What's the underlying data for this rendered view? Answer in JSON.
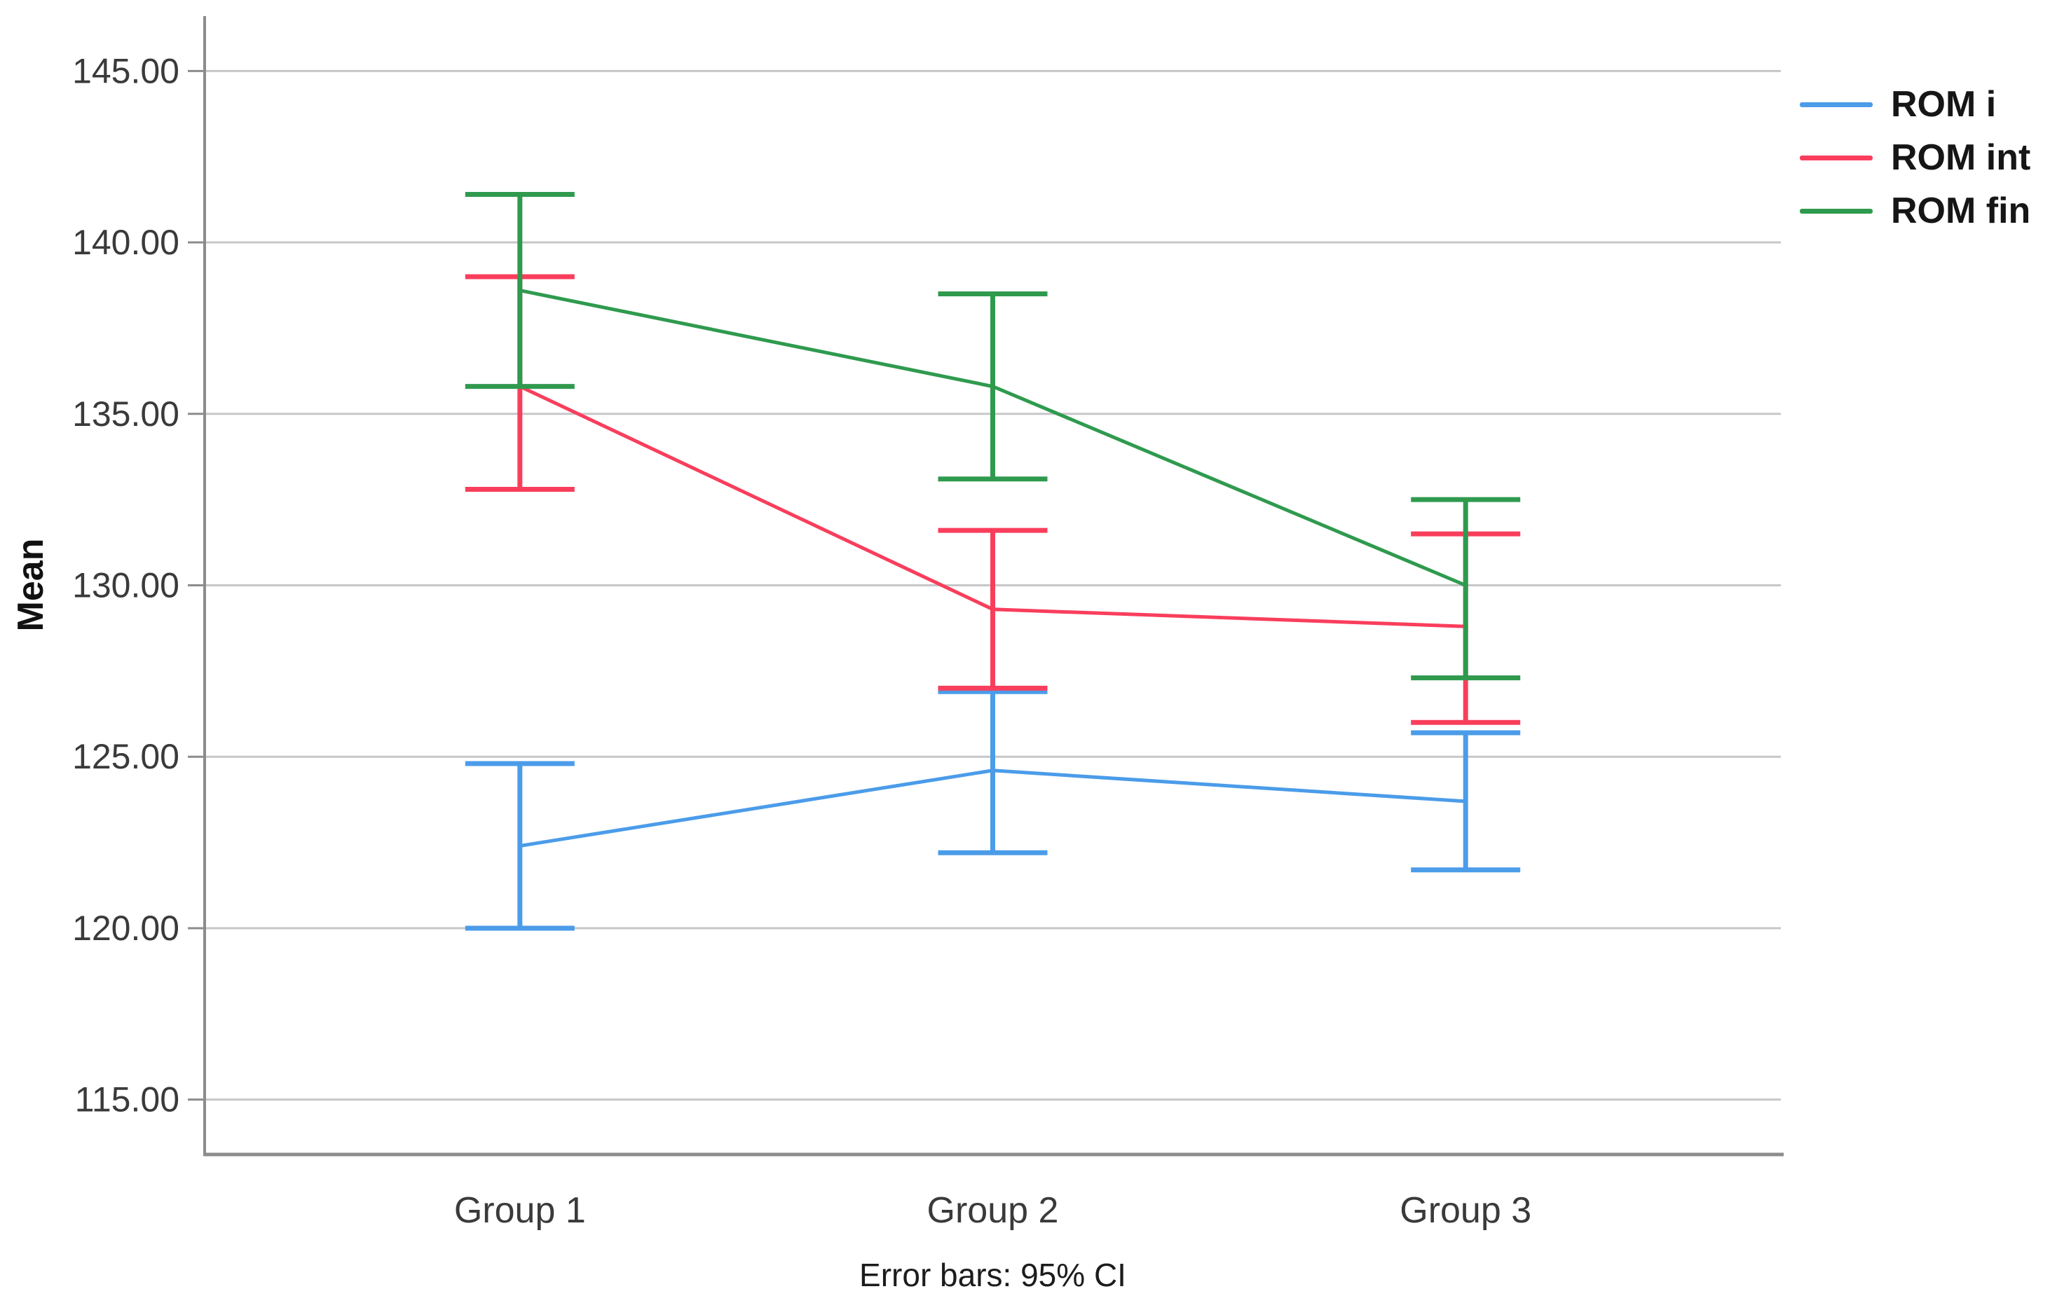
{
  "chart_data": {
    "type": "line",
    "title": "",
    "xlabel": "",
    "ylabel": "Mean",
    "caption": "Error bars: 95% CI",
    "error_bars": "95% CI",
    "categories": [
      "Group 1",
      "Group 2",
      "Group 3"
    ],
    "y_ticks": [
      {
        "value": 145,
        "label": "145.00"
      },
      {
        "value": 140,
        "label": "140.00"
      },
      {
        "value": 135,
        "label": "135.00"
      },
      {
        "value": 130,
        "label": "130.00"
      },
      {
        "value": 125,
        "label": "125.00"
      },
      {
        "value": 120,
        "label": "120.00"
      },
      {
        "value": 115,
        "label": "115.00"
      }
    ],
    "ylim": [
      113.4,
      146.6
    ],
    "grid": true,
    "legend_position": "top-right",
    "series": [
      {
        "name": "ROM i",
        "color": "#4B9CE9",
        "means": [
          122.4,
          124.6,
          123.7
        ],
        "ci_low": [
          120.0,
          122.2,
          121.7
        ],
        "ci_high": [
          124.8,
          126.9,
          125.7
        ]
      },
      {
        "name": "ROM int",
        "color": "#F93E5C",
        "means": [
          135.8,
          129.3,
          128.8
        ],
        "ci_low": [
          132.8,
          127.0,
          126.0
        ],
        "ci_high": [
          139.0,
          131.6,
          131.5
        ]
      },
      {
        "name": "ROM fin",
        "color": "#2F9A4E",
        "means": [
          138.6,
          135.8,
          130.0
        ],
        "ci_low": [
          135.8,
          133.1,
          127.3
        ],
        "ci_high": [
          141.4,
          138.5,
          132.5
        ]
      }
    ],
    "colors": {
      "axis": "#8C8C8C",
      "grid": "#C7C7CA",
      "text": "#3a3a3a"
    }
  }
}
